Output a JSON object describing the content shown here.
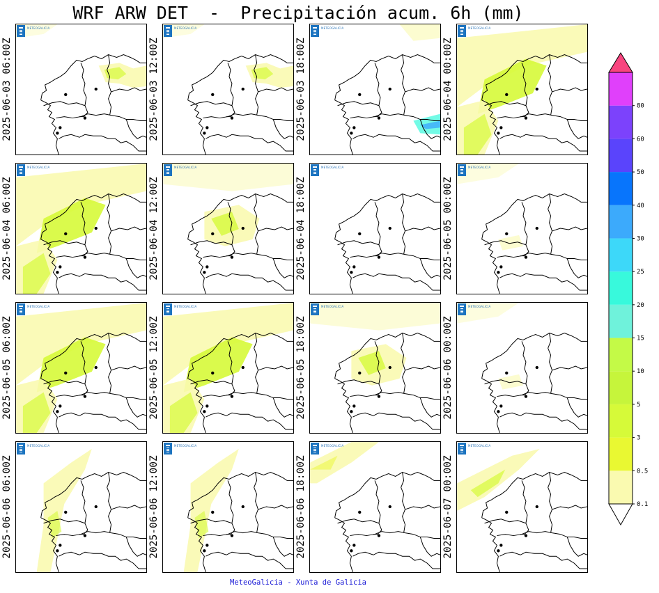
{
  "title": "WRF ARW DET  -  Precipitación acum. 6h (mm)",
  "footer": "MeteoGalicia - Xunta de Galicia",
  "logo_text": "METEOGALICIA",
  "panels": [
    {
      "label": "2025-06-03 06:00Z",
      "precip": "light-east"
    },
    {
      "label": "2025-06-03 12:00Z",
      "precip": "light-east"
    },
    {
      "label": "2025-06-03 18:00Z",
      "precip": "trace-southeast"
    },
    {
      "label": "2025-06-04 00:00Z",
      "precip": "widespread"
    },
    {
      "label": "2025-06-04 06:00Z",
      "precip": "widespread"
    },
    {
      "label": "2025-06-04 12:00Z",
      "precip": "moderate"
    },
    {
      "label": "2025-06-04 18:00Z",
      "precip": "none"
    },
    {
      "label": "2025-06-05 00:00Z",
      "precip": "trace"
    },
    {
      "label": "2025-06-05 06:00Z",
      "precip": "widespread"
    },
    {
      "label": "2025-06-05 12:00Z",
      "precip": "widespread"
    },
    {
      "label": "2025-06-05 18:00Z",
      "precip": "moderate"
    },
    {
      "label": "2025-06-06 00:00Z",
      "precip": "trace"
    },
    {
      "label": "2025-06-06 06:00Z",
      "precip": "light-west"
    },
    {
      "label": "2025-06-06 12:00Z",
      "precip": "light-west"
    },
    {
      "label": "2025-06-06 18:00Z",
      "precip": "trace-northwest"
    },
    {
      "label": "2025-06-07 00:00Z",
      "precip": "light-northwest"
    }
  ],
  "colorbar": {
    "levels": [
      "0.1",
      "0.5",
      "3",
      "5",
      "10",
      "15",
      "20",
      "25",
      "30",
      "40",
      "50",
      "60",
      "80"
    ],
    "colors": [
      "#fafab0",
      "#e9f832",
      "#d6fa39",
      "#c6f53b",
      "#c4fa47",
      "#6ff2db",
      "#38f9dc",
      "#3dd8f9",
      "#3caafc",
      "#0875fc",
      "#5a44fc",
      "#7c42fc",
      "#e040fb"
    ],
    "over_color": "#f8457f",
    "under_color": "#ffffff"
  }
}
